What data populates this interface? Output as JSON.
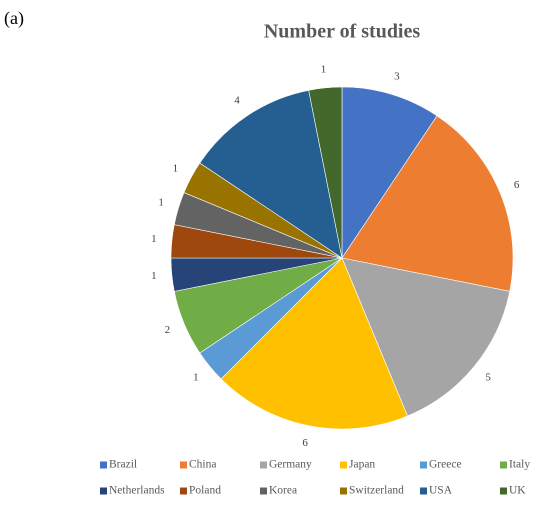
{
  "panel_label": "(a)",
  "chart_data": {
    "type": "pie",
    "title": "Number of studies",
    "categories": [
      "Brazil",
      "China",
      "Germany",
      "Japan",
      "Greece",
      "Italy",
      "Netherlands",
      "Poland",
      "Korea",
      "Switzerland",
      "USA",
      "UK"
    ],
    "values": [
      3,
      6,
      5,
      6,
      1,
      2,
      1,
      1,
      1,
      1,
      4,
      1
    ],
    "colors": [
      "#4472c4",
      "#ed7d31",
      "#a5a5a5",
      "#ffc000",
      "#5b9bd5",
      "#70ad47",
      "#264478",
      "#9e480e",
      "#636363",
      "#997300",
      "#255e91",
      "#43682b"
    ],
    "legend": "bottom"
  }
}
